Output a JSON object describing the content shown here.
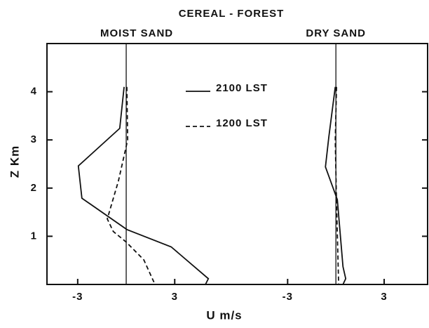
{
  "chart_data": {
    "type": "line",
    "title": "CEREAL - FOREST",
    "xlabel": "U   m/s",
    "ylabel": "Z  Km",
    "ylim": [
      0,
      5
    ],
    "yticks": [
      1,
      2,
      3,
      4
    ],
    "zero_line": true,
    "legend": "top-center",
    "panels": [
      {
        "subtitle": "MOIST  SAND",
        "xlim": [
          -4.9,
          6.5
        ],
        "xticks": [
          -3,
          3
        ],
        "series": [
          {
            "name": "2100 LST",
            "color": "#111111",
            "dash": false,
            "x": [
              -0.13,
              -0.4,
              -2.96,
              -2.74,
              0.04,
              2.78,
              5.08,
              4.9
            ],
            "y": [
              4.1,
              3.24,
              2.46,
              1.79,
              1.14,
              0.78,
              0.12,
              0
            ]
          },
          {
            "name": "1200 LST",
            "color": "#111111",
            "dash": true,
            "x": [
              0.04,
              0.09,
              -0.48,
              -1.17,
              -0.8,
              0,
              1.09,
              1.78
            ],
            "y": [
              4.1,
              3.0,
              2.15,
              1.36,
              1.1,
              0.88,
              0.51,
              0
            ]
          }
        ]
      },
      {
        "subtitle": "DRY  SAND",
        "xlim": [
          -6.5,
          5.7
        ],
        "xticks": [
          -3,
          3
        ],
        "series": [
          {
            "name": "2100 LST",
            "color": "#111111",
            "dash": false,
            "x": [
              -0.04,
              -0.44,
              -0.65,
              0.09,
              0.44,
              0.61,
              0.44
            ],
            "y": [
              4.1,
              3.06,
              2.44,
              1.76,
              0.37,
              0.12,
              0
            ]
          },
          {
            "name": "1200 LST",
            "color": "#111111",
            "dash": true,
            "x": [
              0.04,
              -0.04,
              0.04,
              0.17
            ],
            "y": [
              4.1,
              3.0,
              1.68,
              0
            ]
          }
        ]
      }
    ]
  }
}
